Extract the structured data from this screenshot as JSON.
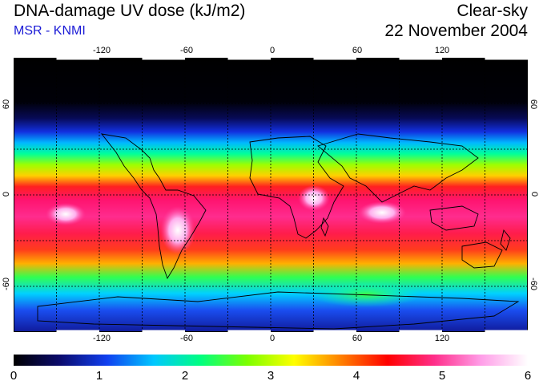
{
  "header": {
    "title": "DNA-damage UV dose (kJ/m2)",
    "subtitle": "MSR - KNMI",
    "sky_condition": "Clear-sky",
    "date": "22 November 2004"
  },
  "map": {
    "lon_ticks": [
      "-120",
      "-60",
      "0",
      "60",
      "120"
    ],
    "lat_ticks_left": [
      "60",
      "0",
      "-60"
    ],
    "lat_ticks_right": [
      "60",
      "0",
      "-60"
    ],
    "colorbar": {
      "labels": [
        "0",
        "1",
        "2",
        "3",
        "4",
        "5",
        "6"
      ],
      "colors": [
        "#000000",
        "#0b0b6e",
        "#1040f0",
        "#00c8ff",
        "#00ff80",
        "#7cff00",
        "#ffff00",
        "#ff8000",
        "#ff0000",
        "#ff2e8a",
        "#ff9ee8",
        "#ffffff"
      ]
    }
  }
}
